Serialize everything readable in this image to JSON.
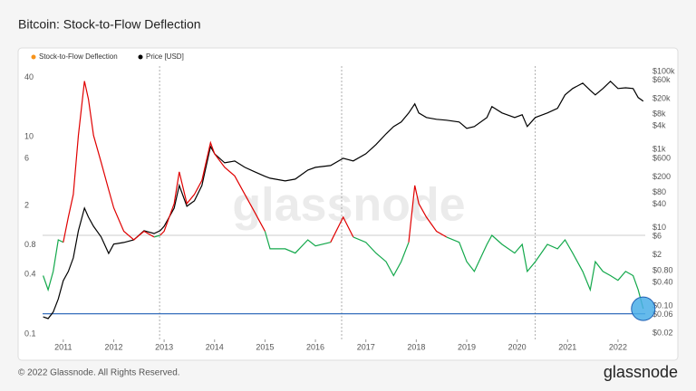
{
  "chart_data": {
    "type": "line",
    "title": "Bitcoin: Stock-to-Flow Deflection",
    "watermark": "glassnode",
    "footer": "© 2022 Glassnode. All Rights Reserved.",
    "logo": "glassnode",
    "x": [
      2010.6,
      2010.7,
      2010.8,
      2010.9,
      2011.0,
      2011.1,
      2011.2,
      2011.3,
      2011.42,
      2011.5,
      2011.6,
      2011.75,
      2011.9,
      2012.0,
      2012.2,
      2012.4,
      2012.6,
      2012.8,
      2012.92,
      2013.0,
      2013.2,
      2013.3,
      2013.45,
      2013.6,
      2013.75,
      2013.92,
      2014.0,
      2014.2,
      2014.4,
      2014.6,
      2014.8,
      2015.0,
      2015.1,
      2015.4,
      2015.6,
      2015.85,
      2016.0,
      2016.3,
      2016.55,
      2016.75,
      2017.0,
      2017.2,
      2017.4,
      2017.55,
      2017.7,
      2017.85,
      2017.97,
      2018.05,
      2018.2,
      2018.4,
      2018.6,
      2018.85,
      2019.0,
      2019.15,
      2019.4,
      2019.5,
      2019.7,
      2019.95,
      2020.1,
      2020.2,
      2020.36,
      2020.6,
      2020.8,
      2020.95,
      2021.1,
      2021.3,
      2021.45,
      2021.55,
      2021.7,
      2021.85,
      2022.0,
      2022.15,
      2022.3,
      2022.4,
      2022.5
    ],
    "series": [
      {
        "name": "Stock-to-Flow Deflection",
        "color": "#f7931a",
        "axis": "y",
        "values": [
          0.39,
          0.28,
          0.43,
          0.9,
          0.85,
          1.53,
          2.6,
          10.3,
          36.6,
          24,
          10.3,
          5.5,
          2.9,
          1.9,
          1.1,
          0.9,
          1.1,
          0.96,
          1.0,
          1.1,
          2.1,
          4.4,
          2.1,
          2.6,
          3.6,
          8.7,
          6.7,
          4.9,
          4.0,
          2.6,
          1.7,
          1.1,
          0.73,
          0.73,
          0.66,
          0.9,
          0.78,
          0.85,
          1.53,
          0.96,
          0.85,
          0.66,
          0.54,
          0.39,
          0.54,
          0.85,
          3.2,
          2.1,
          1.53,
          1.1,
          0.96,
          0.85,
          0.54,
          0.43,
          0.81,
          1.0,
          0.81,
          0.66,
          0.81,
          0.43,
          0.54,
          0.81,
          0.73,
          0.9,
          0.66,
          0.43,
          0.28,
          0.54,
          0.43,
          0.39,
          0.35,
          0.43,
          0.39,
          0.28,
          0.18
        ]
      },
      {
        "name": "Price [USD]",
        "color": "#000000",
        "axis": "y2",
        "values": [
          0.052,
          0.047,
          0.069,
          0.15,
          0.44,
          0.76,
          1.69,
          8.4,
          31.8,
          18.7,
          10.9,
          5.8,
          2.2,
          3.8,
          4.2,
          4.9,
          8.4,
          7.1,
          8.4,
          10.9,
          31.8,
          121,
          35.4,
          48.8,
          121,
          1200,
          785,
          460,
          510,
          352,
          270,
          207,
          185,
          158,
          176,
          300,
          352,
          392,
          600,
          513,
          785,
          1340,
          2540,
          3900,
          5100,
          8700,
          14800,
          8700,
          6650,
          5980,
          5660,
          5100,
          3500,
          3900,
          6650,
          12600,
          8700,
          6650,
          7800,
          3900,
          6650,
          8700,
          11400,
          25300,
          36700,
          50700,
          33000,
          25300,
          36700,
          56400,
          36700,
          38400,
          36700,
          21500,
          17400
        ]
      }
    ],
    "color_above": "#e00000",
    "color_below": "#13a84b",
    "threshold": 1,
    "reference_line": {
      "value": 0.16,
      "color": "#1f5fb4"
    },
    "highlight_color": "#4aaee8",
    "halvings": [
      2012.91,
      2016.52,
      2020.36
    ],
    "log_scale": true,
    "xlim": [
      2010.59,
      2022.54
    ],
    "xticks": [
      2011,
      2012,
      2013,
      2014,
      2015,
      2016,
      2017,
      2018,
      2019,
      2020,
      2021,
      2022
    ],
    "ylim": [
      0.088,
      52
    ],
    "yticks": [
      40,
      10,
      6,
      2,
      0.8,
      0.4,
      0.1
    ],
    "y2lim": [
      0.0138,
      138000
    ],
    "y2ticks": [
      {
        "value": 100000,
        "label": "$100k"
      },
      {
        "value": 60000,
        "label": "$60k"
      },
      {
        "value": 20000,
        "label": "$20k"
      },
      {
        "value": 8000,
        "label": "$8k"
      },
      {
        "value": 4000,
        "label": "$4k"
      },
      {
        "value": 1000,
        "label": "$1k"
      },
      {
        "value": 600,
        "label": "$600"
      },
      {
        "value": 200,
        "label": "$200"
      },
      {
        "value": 80,
        "label": "$80"
      },
      {
        "value": 40,
        "label": "$40"
      },
      {
        "value": 10,
        "label": "$10"
      },
      {
        "value": 6,
        "label": "$6"
      },
      {
        "value": 2,
        "label": "$2"
      },
      {
        "value": 0.8,
        "label": "$0.80"
      },
      {
        "value": 0.4,
        "label": "$0.40"
      },
      {
        "value": 0.1,
        "label": "$0.10"
      },
      {
        "value": 0.06,
        "label": "$0.06"
      },
      {
        "value": 0.02,
        "label": "$0.02"
      }
    ]
  }
}
